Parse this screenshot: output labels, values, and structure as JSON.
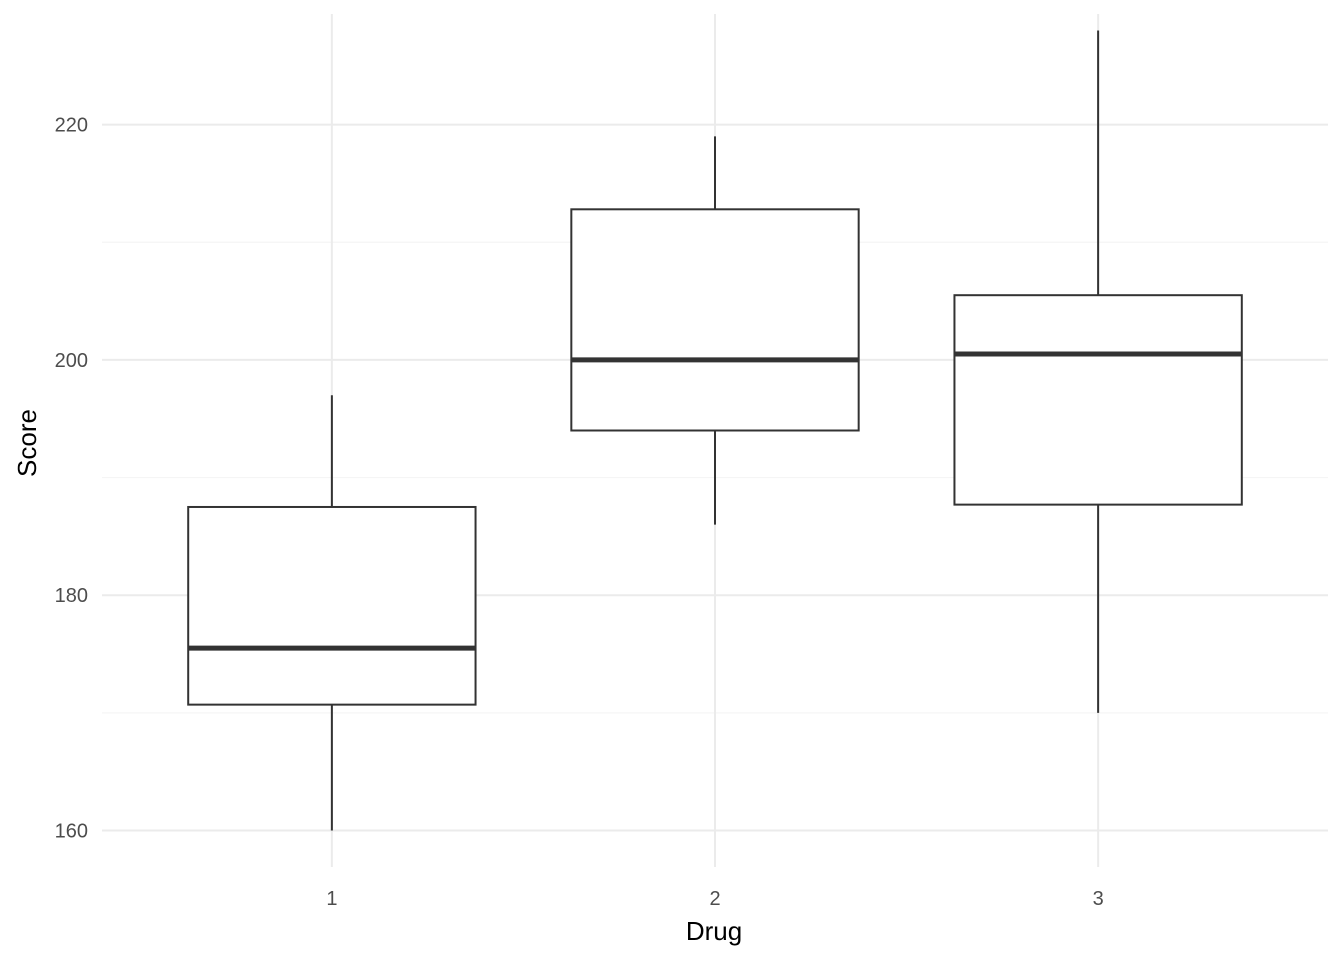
{
  "chart_data": {
    "type": "boxplot",
    "xlabel": "Drug",
    "ylabel": "Score",
    "categories": [
      "1",
      "2",
      "3"
    ],
    "boxes": [
      {
        "category": "1",
        "whisker_low": 160,
        "q1": 170.7,
        "median": 175.5,
        "q3": 187.5,
        "whisker_high": 197
      },
      {
        "category": "2",
        "whisker_low": 186,
        "q1": 194,
        "median": 200,
        "q3": 212.8,
        "whisker_high": 219
      },
      {
        "category": "3",
        "whisker_low": 170,
        "q1": 187.7,
        "median": 200.5,
        "q3": 205.5,
        "whisker_high": 228
      }
    ],
    "y_ticks": [
      160,
      180,
      200,
      220
    ],
    "ylim": [
      156.9,
      229.4
    ],
    "grid": true,
    "legend": "none",
    "colors": {
      "box_stroke": "#333333",
      "box_fill": "#ffffff",
      "grid_major": "#ebebeb",
      "grid_minor": "#f5f5f5"
    }
  }
}
